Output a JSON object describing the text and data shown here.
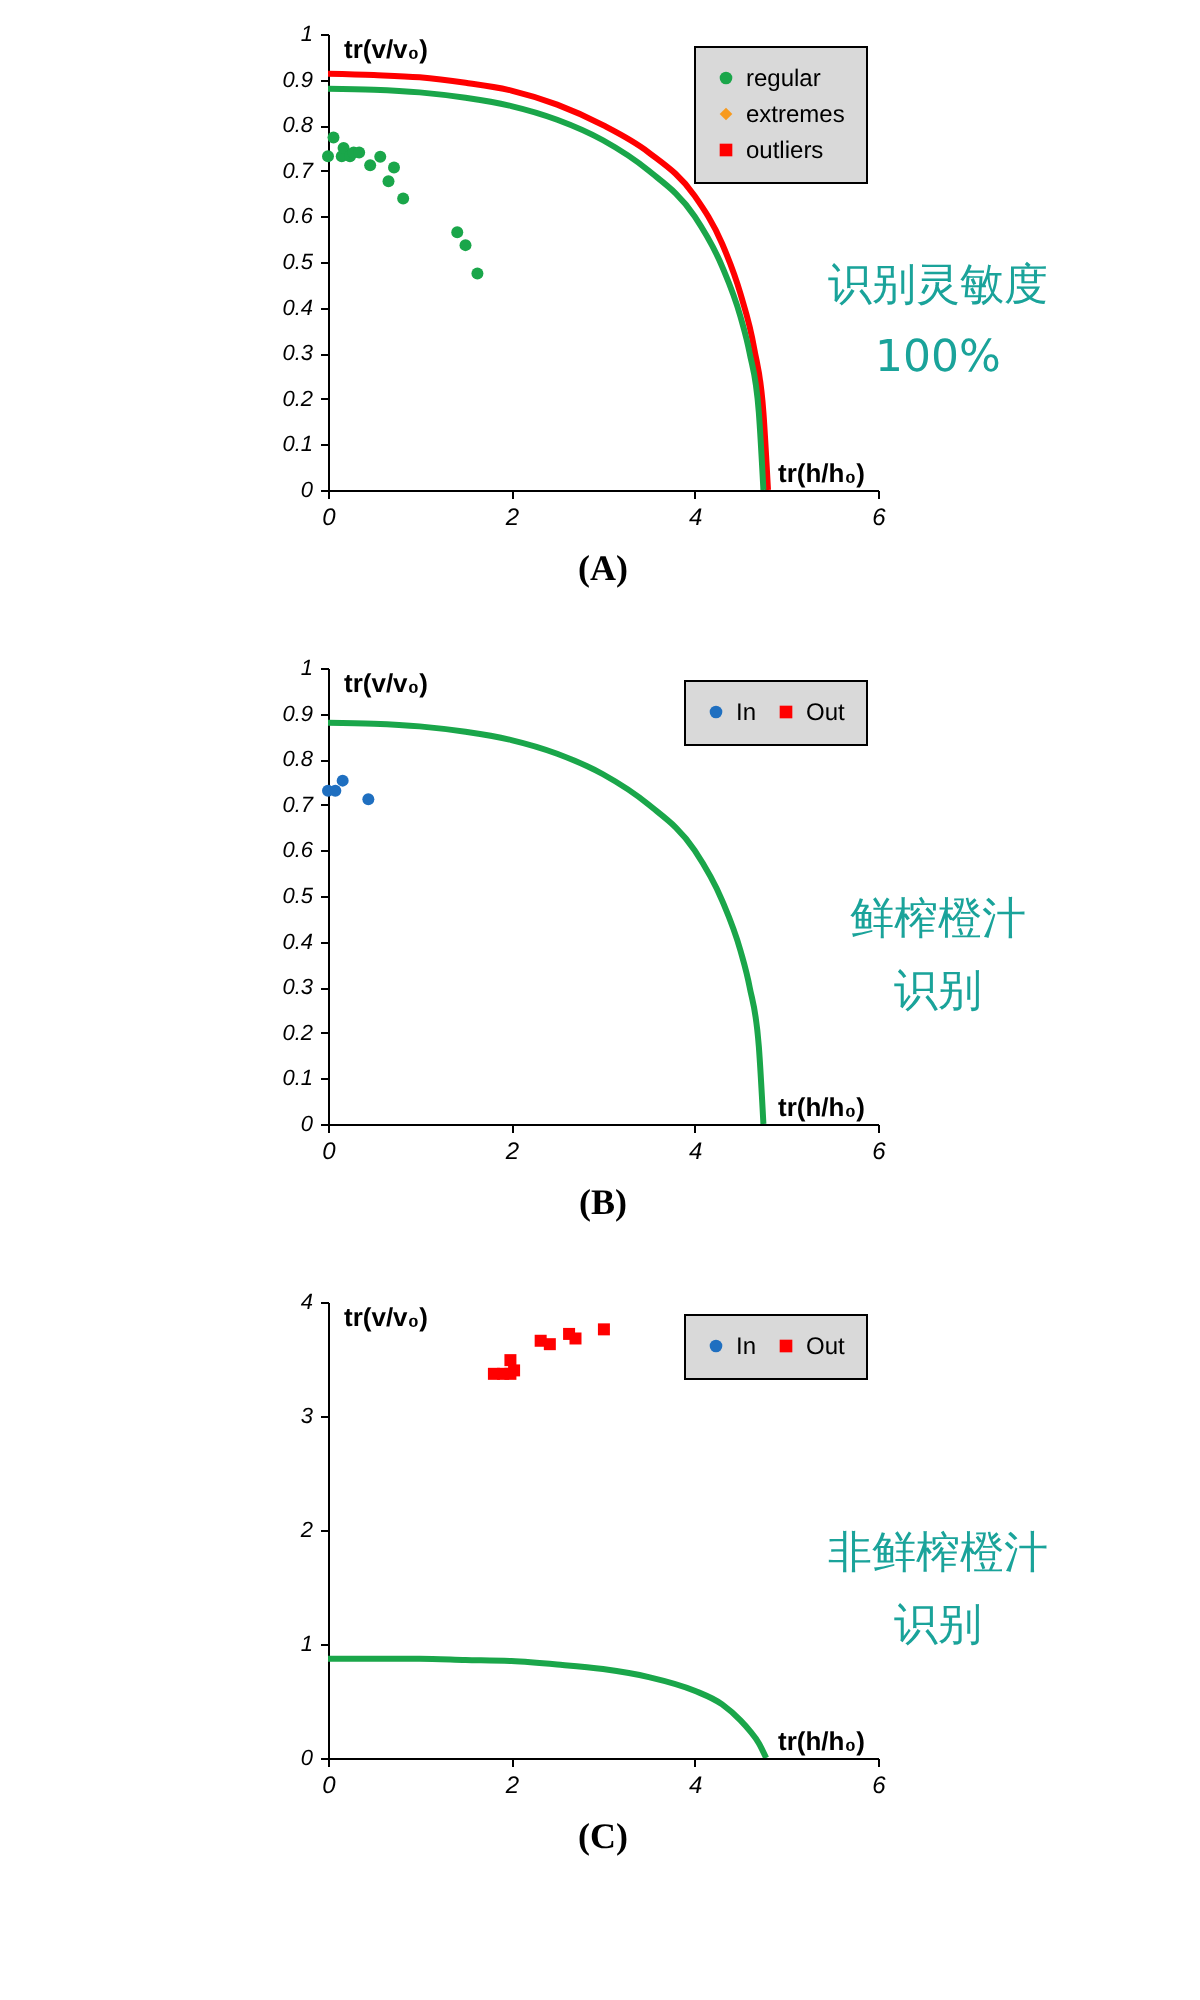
{
  "chart_data": [
    {
      "type": "scatter",
      "title": "(A)",
      "xlabel": "tr(h/h₀)",
      "ylabel": "tr(v/v₀)",
      "annotations": [
        "识别灵敏度",
        "100%"
      ],
      "xlim": [
        0,
        6
      ],
      "xticks": [
        0,
        2,
        4,
        6
      ],
      "ylim": [
        0,
        1
      ],
      "yticks": [
        0,
        0.1,
        0.2,
        0.3,
        0.4,
        0.5,
        0.6,
        0.7,
        0.8,
        0.9,
        1
      ],
      "grid": false,
      "legend": "top right",
      "series": [
        {
          "name": "regular",
          "color": "#1aa64a",
          "marker": "circle",
          "x": [
            0,
            0.06,
            0.15,
            0.17,
            0.24,
            0.28,
            0.34,
            0.46,
            0.57,
            0.66,
            0.72,
            0.82,
            1.41,
            1.5,
            1.63
          ],
          "values": [
            0.732,
            0.773,
            0.732,
            0.75,
            0.732,
            0.74,
            0.74,
            0.712,
            0.731,
            0.677,
            0.707,
            0.639,
            0.565,
            0.537,
            0.475
          ]
        },
        {
          "name": "extremes",
          "color": "#f79a1e",
          "marker": "diamond"
        },
        {
          "name": "outliers",
          "color": "#ff0000",
          "marker": "square"
        },
        {
          "type": "line",
          "color": "#ff0000",
          "x": [
            0,
            0.5,
            1,
            1.5,
            2,
            2.5,
            3,
            3.5,
            4,
            4.3,
            4.5,
            4.65,
            4.75,
            4.8
          ],
          "values": [
            0.913,
            0.91,
            0.905,
            0.893,
            0.876,
            0.845,
            0.8,
            0.74,
            0.645,
            0.54,
            0.43,
            0.31,
            0.17,
            0
          ]
        },
        {
          "type": "line",
          "color": "#1aa64a",
          "x": [
            0,
            0.5,
            1,
            1.5,
            2,
            2.5,
            3,
            3.5,
            4,
            4.3,
            4.5,
            4.6,
            4.7,
            4.75
          ],
          "values": [
            0.88,
            0.878,
            0.872,
            0.86,
            0.842,
            0.812,
            0.767,
            0.7,
            0.6,
            0.49,
            0.38,
            0.3,
            0.17,
            0
          ]
        }
      ]
    },
    {
      "type": "scatter",
      "title": "(B)",
      "xlabel": "tr(h/h₀)",
      "ylabel": "tr(v/v₀)",
      "annotations": [
        "鲜榨橙汁",
        "识别"
      ],
      "xlim": [
        0,
        6
      ],
      "xticks": [
        0,
        2,
        4,
        6
      ],
      "ylim": [
        0,
        1
      ],
      "yticks": [
        0,
        0.1,
        0.2,
        0.3,
        0.4,
        0.5,
        0.6,
        0.7,
        0.8,
        0.9,
        1
      ],
      "grid": false,
      "legend": "top right",
      "series": [
        {
          "name": "In",
          "color": "#1f6fc0",
          "marker": "circle",
          "x": [
            0,
            0.08,
            0.16,
            0.44
          ],
          "values": [
            0.731,
            0.731,
            0.753,
            0.712
          ]
        },
        {
          "name": "Out",
          "color": "#ff0000",
          "marker": "square"
        },
        {
          "type": "line",
          "color": "#1aa64a",
          "x": [
            0,
            0.5,
            1,
            1.5,
            2,
            2.5,
            3,
            3.5,
            4,
            4.3,
            4.5,
            4.6,
            4.7,
            4.75
          ],
          "values": [
            0.88,
            0.878,
            0.872,
            0.86,
            0.842,
            0.812,
            0.767,
            0.7,
            0.6,
            0.49,
            0.38,
            0.3,
            0.17,
            0
          ]
        }
      ]
    },
    {
      "type": "scatter",
      "title": "(C)",
      "xlabel": "tr(h/h₀)",
      "ylabel": "tr(v/v₀)",
      "annotations": [
        "非鲜榨橙汁",
        "识别"
      ],
      "xlim": [
        0,
        6
      ],
      "xticks": [
        0,
        2,
        4,
        6
      ],
      "ylim": [
        0,
        4
      ],
      "yticks": [
        0,
        1,
        2,
        3,
        4
      ],
      "grid": false,
      "legend": "top right",
      "series": [
        {
          "name": "In",
          "color": "#1f6fc0",
          "marker": "circle"
        },
        {
          "name": "Out",
          "color": "#ff0000",
          "marker": "square",
          "x": [
            1.81,
            1.91,
            1.99,
            1.99,
            2.03,
            2.32,
            2.42,
            2.63,
            2.7,
            3.01
          ],
          "values": [
            3.37,
            3.37,
            3.49,
            3.37,
            3.4,
            3.66,
            3.63,
            3.72,
            3.68,
            3.76
          ]
        },
        {
          "type": "line",
          "color": "#1aa64a",
          "x": [
            0,
            0.5,
            1,
            1.5,
            2,
            2.5,
            3,
            3.5,
            4,
            4.3,
            4.5,
            4.6,
            4.7,
            4.78
          ],
          "values": [
            0.87,
            0.87,
            0.87,
            0.86,
            0.85,
            0.82,
            0.78,
            0.71,
            0.59,
            0.47,
            0.33,
            0.24,
            0.13,
            0
          ]
        }
      ]
    }
  ]
}
